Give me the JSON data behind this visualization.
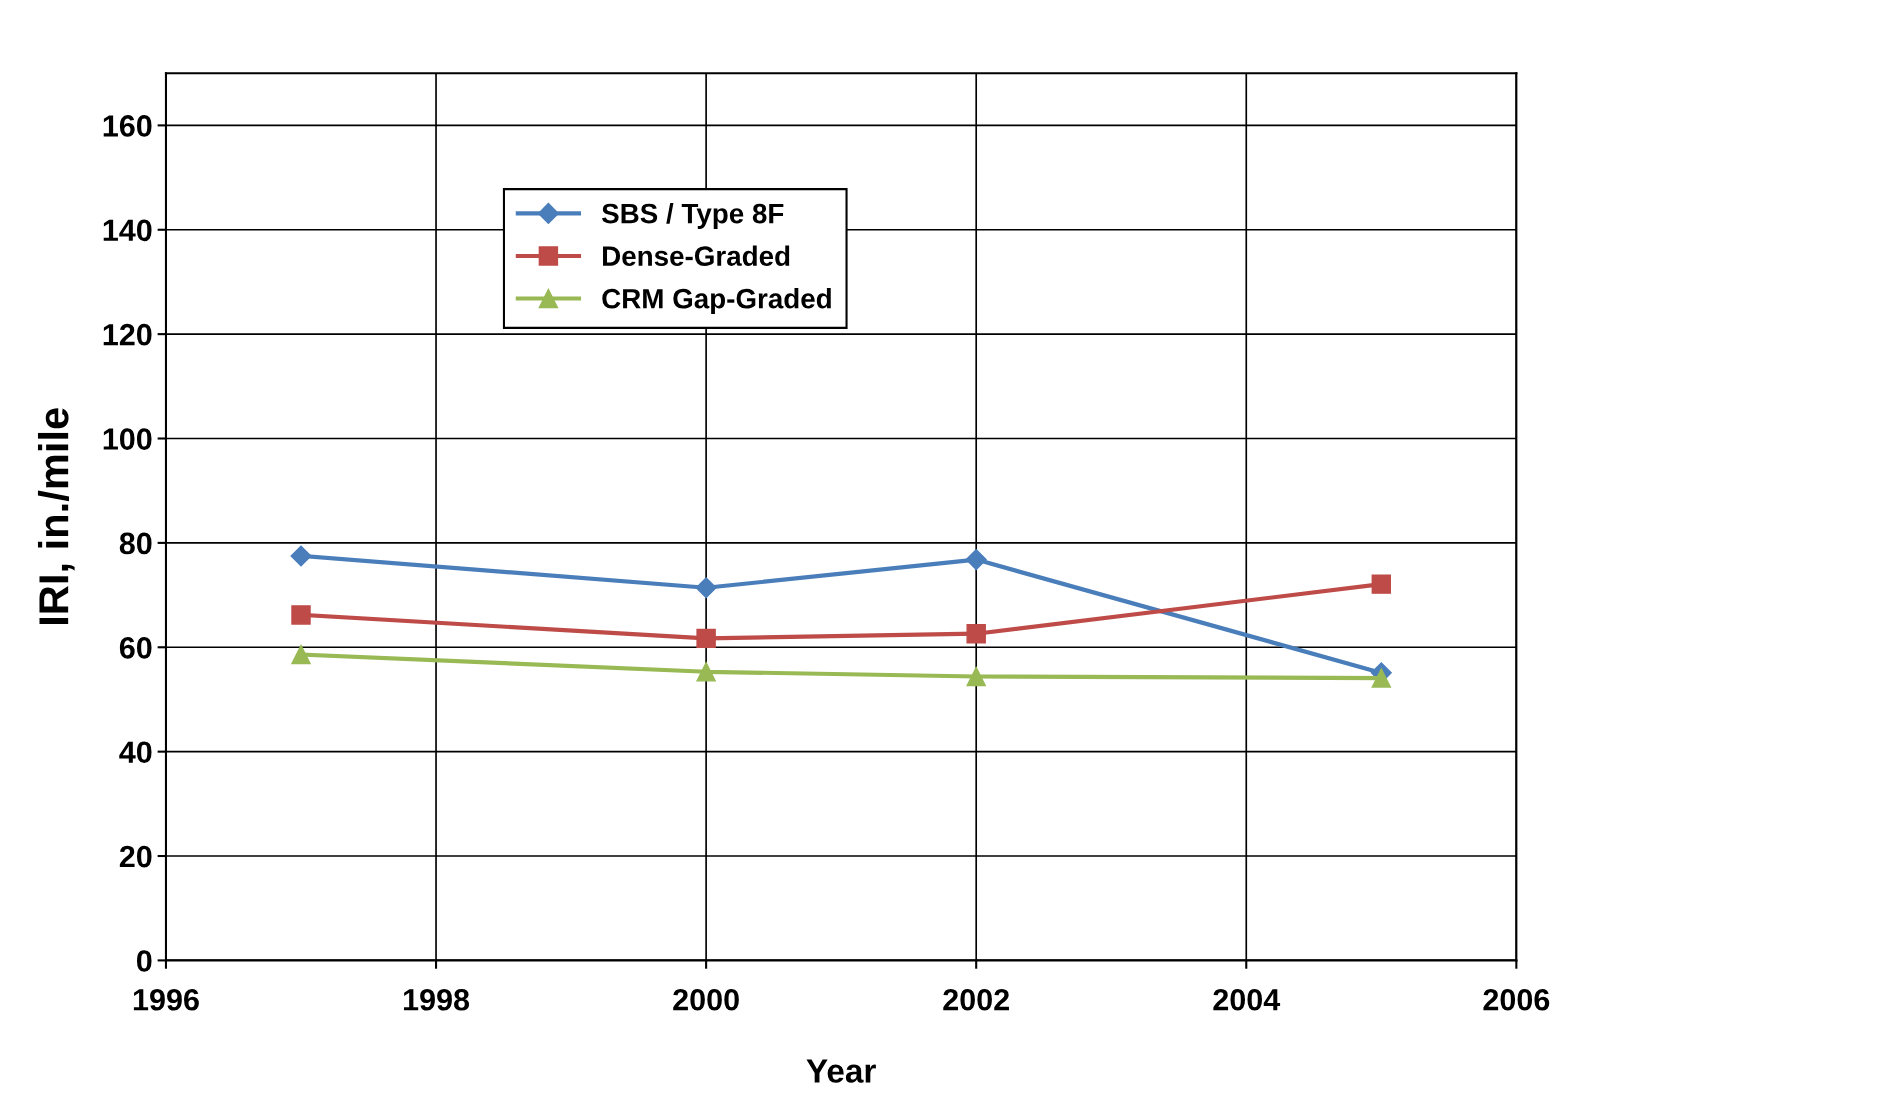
{
  "chart_data": {
    "type": "line",
    "xlabel": "Year",
    "ylabel": "IRI, in./mile",
    "x": [
      1997,
      2000,
      2002,
      2005
    ],
    "series": [
      {
        "name": "SBS / Type 8F",
        "color": "#4a7ebb",
        "marker": "diamond",
        "values": [
          77.5,
          71.4,
          76.8,
          55.1
        ]
      },
      {
        "name": "Dense-Graded",
        "color": "#be4b48",
        "marker": "square",
        "values": [
          66.2,
          61.7,
          62.6,
          72.1
        ]
      },
      {
        "name": "CRM Gap-Graded",
        "color": "#98b954",
        "marker": "triangle",
        "values": [
          58.6,
          55.3,
          54.4,
          54.1
        ]
      }
    ],
    "xlim": [
      1996,
      2006
    ],
    "xticks": [
      1996,
      1998,
      2000,
      2002,
      2004,
      2006
    ],
    "ylim": [
      0,
      170
    ],
    "yticks": [
      0,
      20,
      40,
      60,
      80,
      100,
      120,
      140,
      160
    ],
    "grid": true,
    "legend": "top left",
    "line_style": "solid"
  }
}
